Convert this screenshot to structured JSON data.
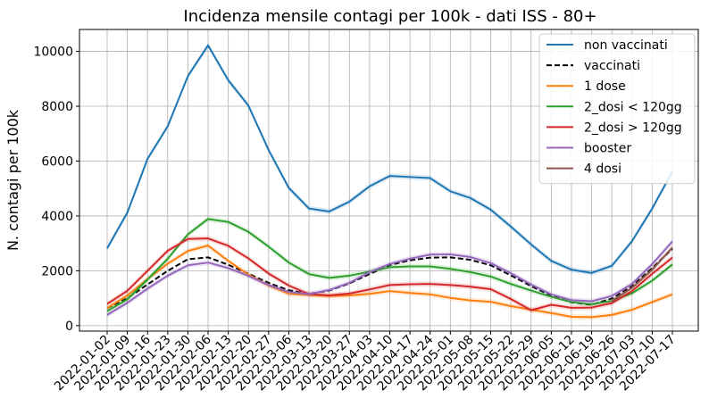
{
  "chart_data": {
    "type": "line",
    "title": "Incidenza mensile contagi per 100k - dati ISS - 80+",
    "xlabel": "",
    "ylabel": "N. contagi per 100k",
    "ylim": [
      -200,
      10800
    ],
    "yticks": [
      0,
      2000,
      4000,
      6000,
      8000,
      10000
    ],
    "grid": true,
    "legend_position": "top-right",
    "categories": [
      "2022-01-02",
      "2022-01-09",
      "2022-01-16",
      "2022-01-23",
      "2022-01-30",
      "2022-02-06",
      "2022-02-13",
      "2022-02-20",
      "2022-02-27",
      "2022-03-06",
      "2022-03-13",
      "2022-03-20",
      "2022-03-27",
      "2022-04-03",
      "2022-04-10",
      "2022-04-17",
      "2022-04-24",
      "2022-05-01",
      "2022-05-08",
      "2022-05-15",
      "2022-05-22",
      "2022-05-29",
      "2022-06-05",
      "2022-06-12",
      "2022-06-19",
      "2022-06-26",
      "2022-07-03",
      "2022-07-10",
      "2022-07-17"
    ],
    "series": [
      {
        "name": "non vaccinati",
        "color": "#1f77b4",
        "dash": false,
        "values": [
          2820,
          4120,
          6080,
          7270,
          9100,
          10220,
          8950,
          8020,
          6400,
          5020,
          4270,
          4160,
          4520,
          5080,
          5460,
          5420,
          5380,
          4900,
          4650,
          4230,
          3610,
          2960,
          2360,
          2040,
          1920,
          2180,
          3080,
          4270,
          5620
        ]
      },
      {
        "name": "vaccinati",
        "color": "#000000",
        "dash": true,
        "values": [
          640,
          1000,
          1500,
          2000,
          2420,
          2490,
          2220,
          1890,
          1560,
          1290,
          1160,
          1280,
          1540,
          1880,
          2210,
          2380,
          2480,
          2490,
          2400,
          2200,
          1830,
          1440,
          1090,
          850,
          760,
          990,
          1440,
          2100,
          2800
        ]
      },
      {
        "name": "1 dose",
        "color": "#ff7f0e",
        "dash": false,
        "values": [
          640,
          1100,
          1700,
          2260,
          2720,
          2920,
          2360,
          1860,
          1460,
          1160,
          1120,
          1080,
          1100,
          1160,
          1260,
          1190,
          1140,
          1010,
          920,
          870,
          710,
          580,
          460,
          320,
          310,
          390,
          580,
          860,
          1140
        ]
      },
      {
        "name": "2_dosi < 120gg",
        "color": "#2ca02c",
        "dash": false,
        "values": [
          530,
          960,
          1680,
          2440,
          3330,
          3890,
          3780,
          3420,
          2880,
          2300,
          1880,
          1740,
          1820,
          1970,
          2130,
          2160,
          2160,
          2070,
          1950,
          1790,
          1520,
          1280,
          1050,
          860,
          780,
          900,
          1180,
          1640,
          2230
        ]
      },
      {
        "name": "2_dosi > 120gg",
        "color": "#d62728",
        "dash": false,
        "values": [
          790,
          1270,
          2000,
          2730,
          3160,
          3180,
          2910,
          2450,
          1900,
          1460,
          1150,
          1100,
          1170,
          1320,
          1480,
          1510,
          1520,
          1480,
          1420,
          1330,
          970,
          560,
          760,
          650,
          660,
          820,
          1260,
          1890,
          2480
        ]
      },
      {
        "name": "booster",
        "color": "#9467bd",
        "dash": false,
        "values": [
          390,
          830,
          1350,
          1820,
          2200,
          2300,
          2100,
          1810,
          1480,
          1230,
          1150,
          1300,
          1560,
          1950,
          2250,
          2440,
          2590,
          2600,
          2500,
          2280,
          1910,
          1500,
          1140,
          930,
          890,
          1080,
          1520,
          2240,
          3070
        ]
      },
      {
        "name": "4 dosi",
        "color": "#8c564b",
        "dash": false,
        "values": [
          null,
          null,
          null,
          null,
          null,
          null,
          null,
          null,
          null,
          null,
          null,
          null,
          null,
          null,
          null,
          null,
          null,
          null,
          null,
          null,
          null,
          null,
          null,
          null,
          null,
          900,
          1380,
          2040,
          2850
        ]
      }
    ]
  }
}
